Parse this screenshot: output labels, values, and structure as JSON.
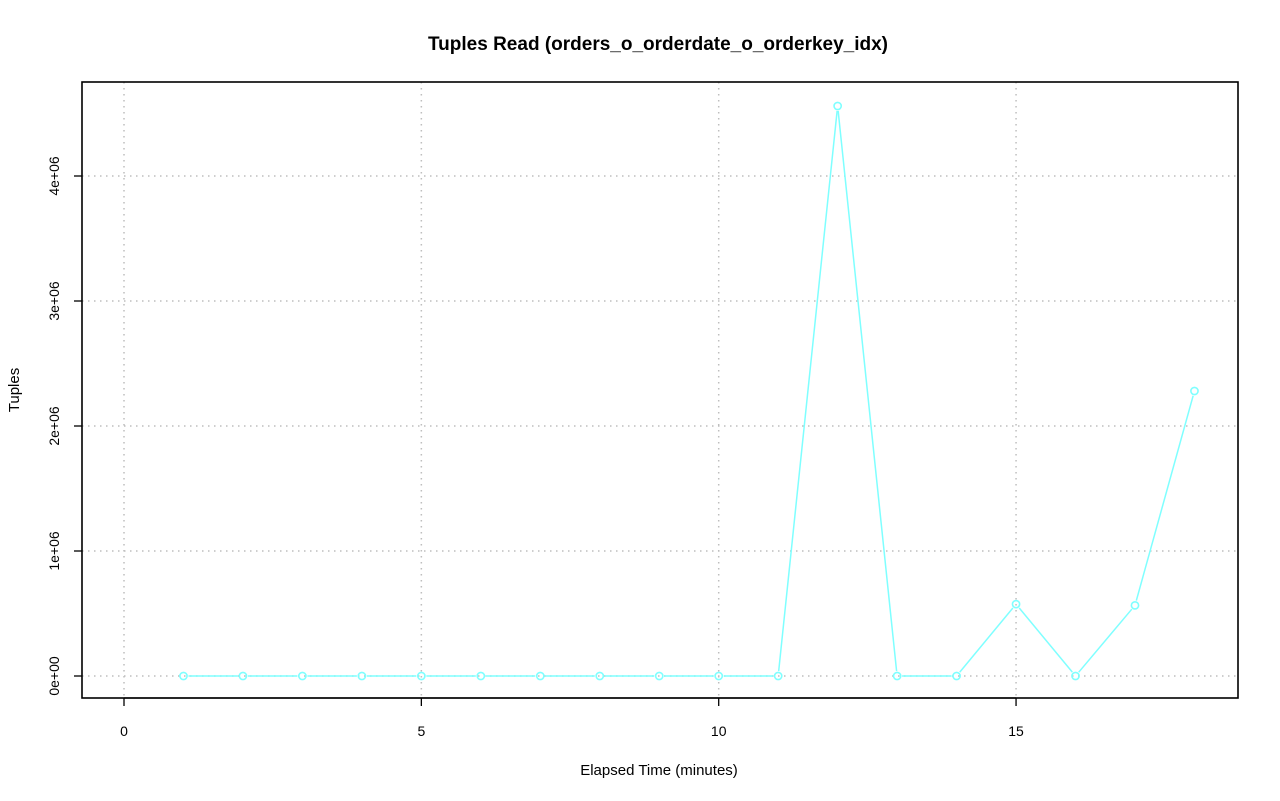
{
  "chart_data": {
    "type": "line",
    "title": "Tuples Read (orders_o_orderdate_o_orderkey_idx)",
    "xlabel": "Elapsed Time (minutes)",
    "ylabel": "Tuples",
    "xlim": [
      0,
      18
    ],
    "ylim": [
      0,
      4600000
    ],
    "x_ticks": [
      0,
      5,
      10,
      15
    ],
    "x_tick_labels": [
      "0",
      "5",
      "10",
      "15"
    ],
    "y_ticks": [
      0,
      1000000,
      2000000,
      3000000,
      4000000
    ],
    "y_tick_labels": [
      "0e+00",
      "1e+06",
      "2e+06",
      "3e+06",
      "4e+06"
    ],
    "grid": true,
    "series": [
      {
        "color": "#7fffff",
        "marker": "open-circle",
        "x": [
          1,
          2,
          3,
          4,
          5,
          6,
          7,
          8,
          9,
          10,
          11,
          12,
          13,
          14,
          15,
          16,
          17,
          18
        ],
        "values": [
          0,
          0,
          0,
          0,
          0,
          0,
          0,
          0,
          0,
          0,
          0,
          4560000,
          0,
          0,
          575000,
          0,
          565000,
          2280000
        ]
      }
    ]
  }
}
